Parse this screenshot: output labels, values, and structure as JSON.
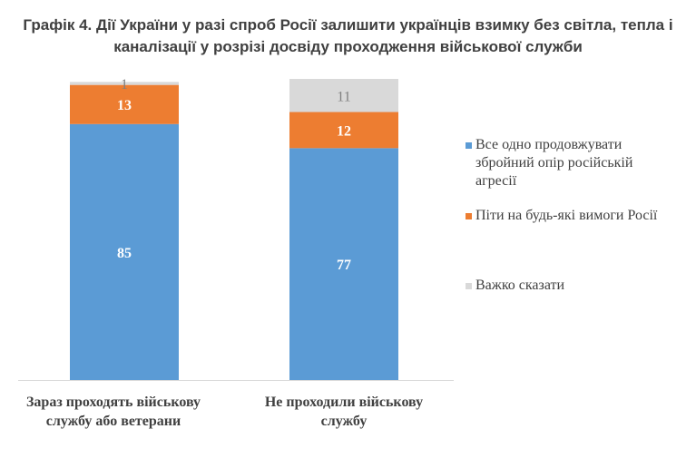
{
  "title": {
    "line1": "Графік 4. Дії України у разі спроб Росії залишити українців взимку без світла, тепла і",
    "line2": "каналізації у розрізі досвіду проходження військової служби"
  },
  "colors": {
    "series1": "#5b9bd5",
    "series2": "#ed7d31",
    "series3": "#d9d9d9",
    "label_light": "#ffffff",
    "label_dark": "#7f7f7f",
    "axis_text": "#404040"
  },
  "chart_data": {
    "type": "bar",
    "stacked": true,
    "percent": true,
    "ylim": [
      0,
      100
    ],
    "grid": false,
    "legend_position": "right",
    "categories": [
      "Зараз проходять військову службу або ветерани",
      "Не проходили військову службу"
    ],
    "category_lines": [
      [
        "Зараз проходять військову",
        "службу або ветерани"
      ],
      [
        "Не проходили військову",
        "службу"
      ]
    ],
    "series": [
      {
        "name": "Все одно продовжувати збройний опір російській агресії",
        "values": [
          85,
          77
        ]
      },
      {
        "name": "Піти на будь-які вимоги Росії",
        "values": [
          13,
          12
        ]
      },
      {
        "name": "Важко сказати",
        "values": [
          1,
          11
        ]
      }
    ]
  },
  "legend": [
    {
      "lines": [
        "Все одно продовжувати",
        "збройний опір російській",
        "агресії"
      ]
    },
    {
      "lines": [
        "Піти на будь-які вимоги Росії"
      ]
    },
    {
      "lines": [
        "Важко сказати"
      ]
    }
  ]
}
